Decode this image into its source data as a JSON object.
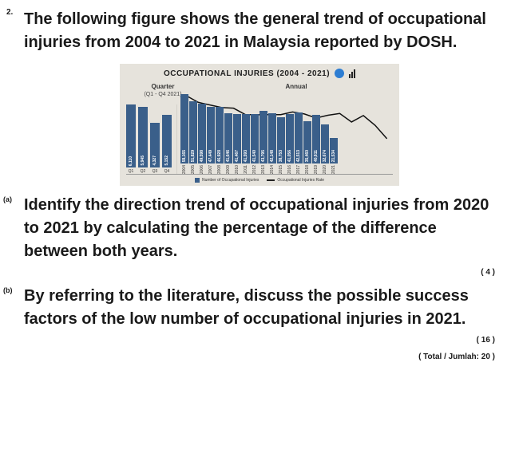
{
  "question_number": "2.",
  "intro": "The following figure shows the general trend of occupational injuries from 2004 to 2021 in Malaysia reported by DOSH.",
  "chart": {
    "type": "bar",
    "title": "OCCUPATIONAL INJURIES (2004 - 2021)",
    "quarter_label": "Quarter",
    "quarter_sub": "(Q1 - Q4 2021)",
    "annual_label": "Annual",
    "background_color": "#e6e3dc",
    "bar_color": "#3a5f8a",
    "trend_color": "#111111",
    "quarter": {
      "max_scale": 7000,
      "bars": [
        {
          "label": "Q1",
          "value": 6110
        },
        {
          "label": "Q2",
          "value": 5945
        },
        {
          "label": "Q3",
          "value": 4327
        },
        {
          "label": "Q4",
          "value": 5152
        }
      ]
    },
    "annual": {
      "max_scale": 60000,
      "bars": [
        {
          "label": "2004",
          "value": 58165
        },
        {
          "label": "2005",
          "value": 51829
        },
        {
          "label": "2006",
          "value": 49598
        },
        {
          "label": "2007",
          "value": 47449
        },
        {
          "label": "2008",
          "value": 46928
        },
        {
          "label": "2009",
          "value": 41646
        },
        {
          "label": "2010",
          "value": 41467
        },
        {
          "label": "2011",
          "value": 41593
        },
        {
          "label": "2012",
          "value": 41540
        },
        {
          "label": "2013",
          "value": 43795
        },
        {
          "label": "2014",
          "value": 42148
        },
        {
          "label": "2015",
          "value": 38753
        },
        {
          "label": "2016",
          "value": 41056
        },
        {
          "label": "2017",
          "value": 42513
        },
        {
          "label": "2018",
          "value": 35460
        },
        {
          "label": "2019",
          "value": 40811
        },
        {
          "label": "2020",
          "value": 32674
        },
        {
          "label": "2021",
          "value": 21534
        }
      ]
    },
    "legend": {
      "bars": "Number of Occupational Injuries",
      "line": "Occupational Injuries Rate"
    }
  },
  "parts": {
    "a": {
      "letter": "(a)",
      "text": "Identify the direction trend of occupational injuries from 2020 to 2021 by calculating the percentage of the difference between both years.",
      "marks": "( 4 )"
    },
    "b": {
      "letter": "(b)",
      "text": "By referring to the literature, discuss the possible success factors of the low number of occupational injuries in 2021.",
      "marks": "( 16 )"
    }
  },
  "total": "( Total / Jumlah: 20 )"
}
